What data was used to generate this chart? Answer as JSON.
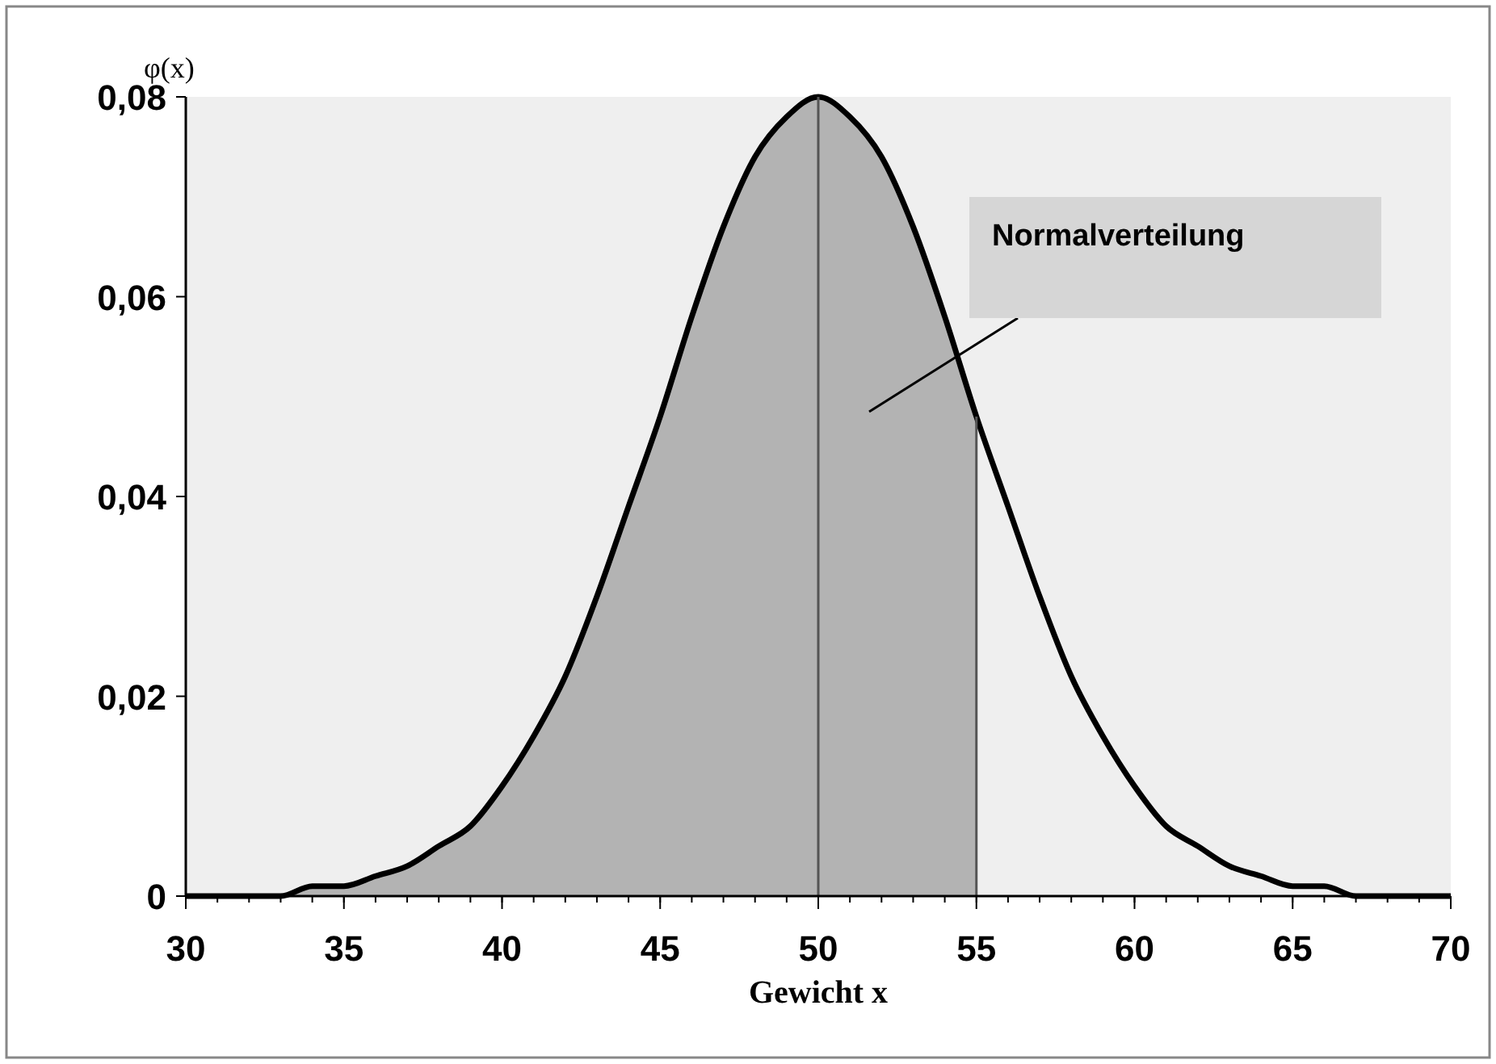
{
  "chart_data": {
    "type": "line",
    "xlabel": "Gewicht x",
    "ylabel": "φ(x)",
    "series": [
      {
        "type": "area",
        "color": "#b3b3b3",
        "x": [
          30,
          31,
          32,
          33,
          34,
          35,
          36,
          37,
          38,
          39,
          40,
          41,
          42,
          43,
          44,
          45,
          46,
          47,
          48,
          49,
          50,
          51,
          52,
          53,
          54,
          55
        ],
        "values": [
          0,
          0,
          0,
          0,
          0.001,
          0.001,
          0.002,
          0.003,
          0.005,
          0.007,
          0.011,
          0.016,
          0.022,
          0.03,
          0.039,
          0.048,
          0.058,
          0.067,
          0.074,
          0.078,
          0.08,
          0.078,
          0.074,
          0.067,
          0.058,
          0.048
        ]
      },
      {
        "color": "#000000",
        "x": [
          30,
          31,
          32,
          33,
          34,
          35,
          36,
          37,
          38,
          39,
          40,
          41,
          42,
          43,
          44,
          45,
          46,
          47,
          48,
          49,
          50,
          51,
          52,
          53,
          54,
          55,
          56,
          57,
          58,
          59,
          60,
          61,
          62,
          63,
          64,
          65,
          66,
          67,
          68,
          69,
          70
        ],
        "values": [
          0,
          0,
          0,
          0,
          0.001,
          0.001,
          0.002,
          0.003,
          0.005,
          0.007,
          0.011,
          0.016,
          0.022,
          0.03,
          0.039,
          0.048,
          0.058,
          0.067,
          0.074,
          0.078,
          0.08,
          0.078,
          0.074,
          0.067,
          0.058,
          0.048,
          0.039,
          0.03,
          0.022,
          0.016,
          0.011,
          0.007,
          0.005,
          0.003,
          0.002,
          0.001,
          0.001,
          0,
          0,
          0,
          0
        ]
      }
    ],
    "ref_lines": [
      {
        "axis": "x",
        "value": 50,
        "color": "#555555"
      },
      {
        "axis": "x",
        "value": 55,
        "color": "#555555"
      }
    ],
    "annotations": [
      "Normalverteilung"
    ],
    "xlim": [
      30,
      70
    ],
    "xticks": [
      30,
      35,
      40,
      45,
      50,
      55,
      60,
      65,
      70
    ],
    "ylim": [
      0,
      0.08
    ],
    "yticks": [
      {
        "value": 0,
        "label": "0"
      },
      {
        "value": 0.02,
        "label": "0,02"
      },
      {
        "value": 0.04,
        "label": "0,04"
      },
      {
        "value": 0.06,
        "label": "0,06"
      },
      {
        "value": 0.08,
        "label": "0,08"
      }
    ],
    "grid": false,
    "marker": "none",
    "line_style": "solid"
  }
}
